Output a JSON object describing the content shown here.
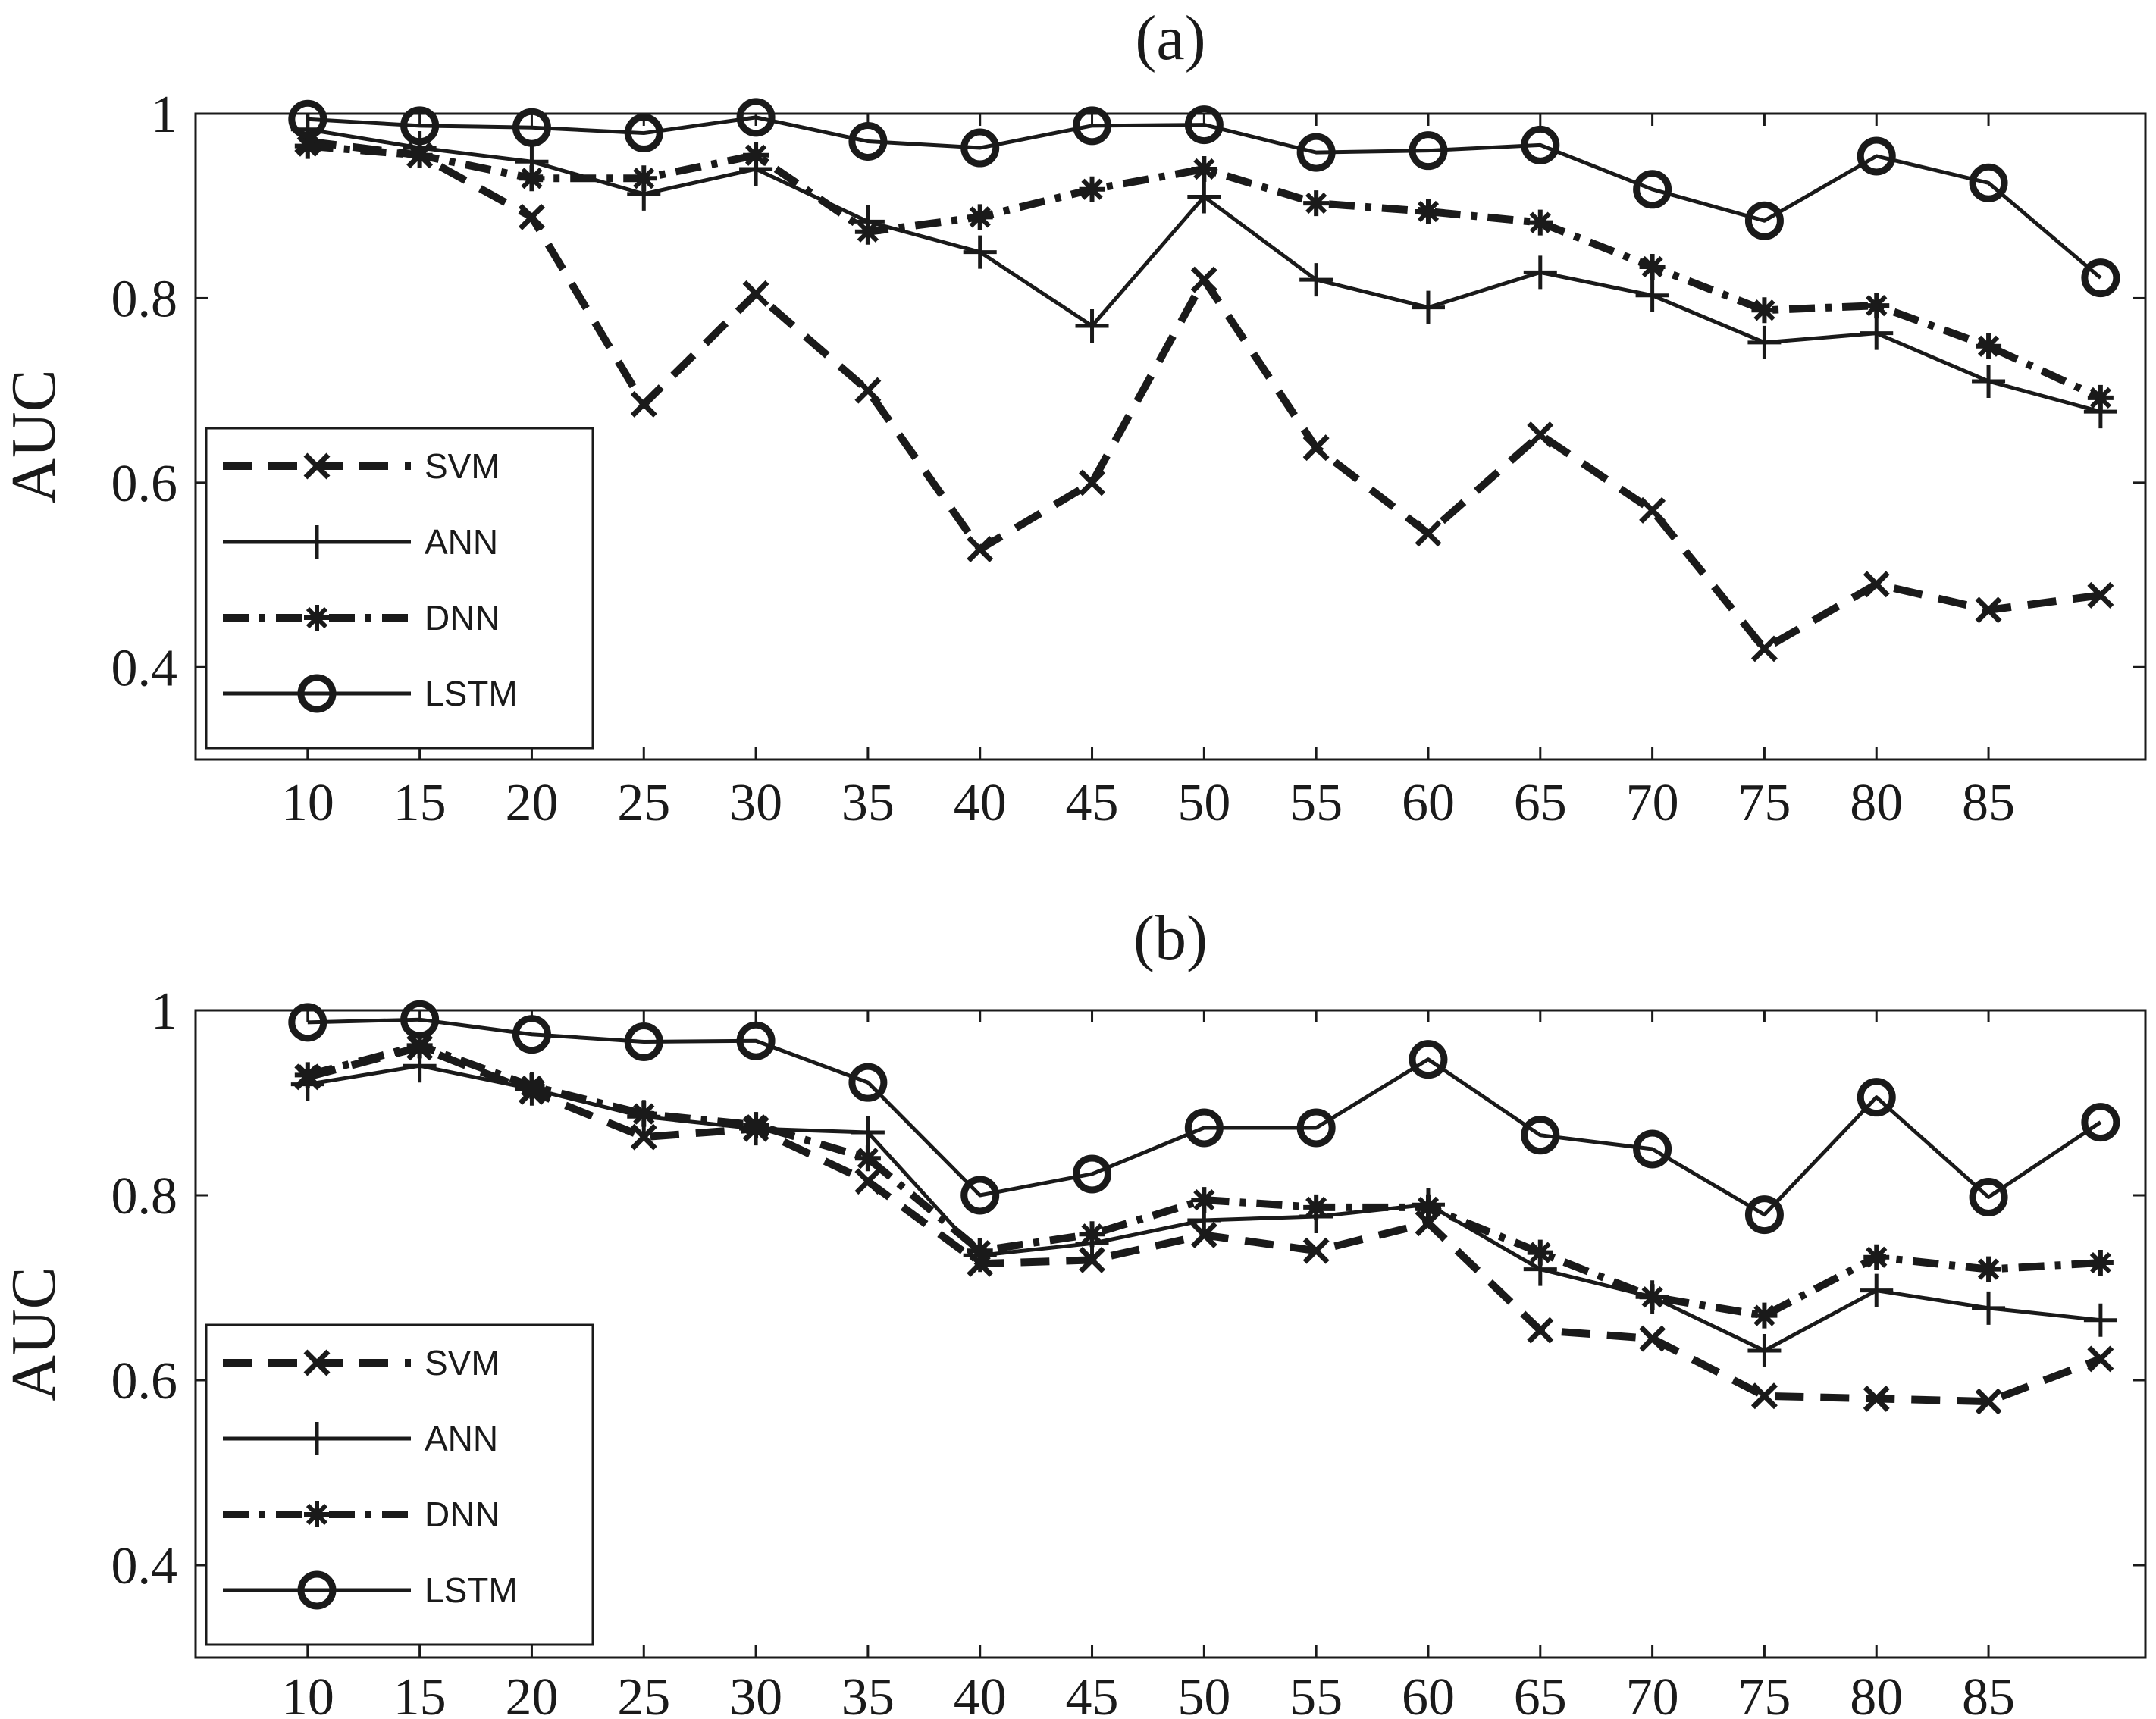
{
  "chart_data": [
    {
      "type": "line",
      "title": "(a)",
      "ylabel": "AUC",
      "xlabel": "",
      "x": [
        10,
        15,
        20,
        25,
        30,
        35,
        40,
        45,
        50,
        55,
        60,
        65,
        70,
        75,
        80,
        85,
        90
      ],
      "xticks": [
        "10",
        "15",
        "20",
        "25",
        "30",
        "35",
        "40",
        "45",
        "50",
        "55",
        "60",
        "65",
        "70",
        "75",
        "80",
        "85"
      ],
      "yticks": [
        "0.4",
        "0.6",
        "0.8",
        "1"
      ],
      "ylim": [
        0.3,
        1.0
      ],
      "xlim": [
        5,
        92
      ],
      "grid": false,
      "legend_position": "bottom-left",
      "series": [
        {
          "name": "SVM",
          "line": "dashed",
          "marker": "x",
          "values": [
            0.97,
            0.955,
            0.888,
            0.685,
            0.805,
            0.7,
            0.528,
            0.6,
            0.82,
            0.638,
            0.545,
            0.652,
            0.57,
            0.42,
            0.49,
            0.462,
            0.478
          ]
        },
        {
          "name": "ANN",
          "line": "solid",
          "marker": "+",
          "values": [
            0.983,
            0.963,
            0.948,
            0.913,
            0.94,
            0.883,
            0.85,
            0.77,
            0.91,
            0.82,
            0.79,
            0.828,
            0.803,
            0.752,
            0.762,
            0.71,
            0.677
          ]
        },
        {
          "name": "DNN",
          "line": "dashdot",
          "marker": "*",
          "values": [
            0.965,
            0.955,
            0.93,
            0.93,
            0.955,
            0.872,
            0.888,
            0.918,
            0.94,
            0.903,
            0.894,
            0.882,
            0.834,
            0.787,
            0.792,
            0.748,
            0.692
          ]
        },
        {
          "name": "LSTM",
          "line": "solid",
          "marker": "circle",
          "values": [
            0.994,
            0.987,
            0.985,
            0.979,
            0.996,
            0.97,
            0.963,
            0.987,
            0.988,
            0.958,
            0.96,
            0.966,
            0.918,
            0.884,
            0.954,
            0.925,
            0.822
          ]
        }
      ]
    },
    {
      "type": "line",
      "title": "(b)",
      "ylabel": "AUC",
      "xlabel": "",
      "x": [
        10,
        15,
        20,
        25,
        30,
        35,
        40,
        45,
        50,
        55,
        60,
        65,
        70,
        75,
        80,
        85,
        90
      ],
      "xticks": [
        "10",
        "15",
        "20",
        "25",
        "30",
        "35",
        "40",
        "45",
        "50",
        "55",
        "60",
        "65",
        "70",
        "75",
        "80",
        "85"
      ],
      "yticks": [
        "0.4",
        "0.6",
        "0.8",
        "1"
      ],
      "ylim": [
        0.3,
        1.0
      ],
      "xlim": [
        5,
        92
      ],
      "grid": false,
      "legend_position": "bottom-left",
      "series": [
        {
          "name": "SVM",
          "line": "dashed",
          "marker": "x",
          "values": [
            0.928,
            0.96,
            0.912,
            0.863,
            0.872,
            0.815,
            0.726,
            0.73,
            0.757,
            0.74,
            0.77,
            0.654,
            0.645,
            0.583,
            0.58,
            0.577,
            0.623
          ]
        },
        {
          "name": "ANN",
          "line": "solid",
          "marker": "+",
          "values": [
            0.92,
            0.94,
            0.915,
            0.885,
            0.872,
            0.868,
            0.735,
            0.748,
            0.773,
            0.777,
            0.79,
            0.72,
            0.69,
            0.632,
            0.697,
            0.678,
            0.665
          ]
        },
        {
          "name": "DNN",
          "line": "dashdot",
          "marker": "*",
          "values": [
            0.93,
            0.962,
            0.918,
            0.888,
            0.876,
            0.84,
            0.74,
            0.758,
            0.795,
            0.787,
            0.787,
            0.738,
            0.69,
            0.67,
            0.733,
            0.72,
            0.727
          ]
        },
        {
          "name": "LSTM",
          "line": "solid",
          "marker": "circle",
          "values": [
            0.987,
            0.99,
            0.974,
            0.966,
            0.967,
            0.922,
            0.8,
            0.823,
            0.873,
            0.873,
            0.947,
            0.865,
            0.85,
            0.779,
            0.906,
            0.798,
            0.879
          ]
        }
      ]
    }
  ]
}
